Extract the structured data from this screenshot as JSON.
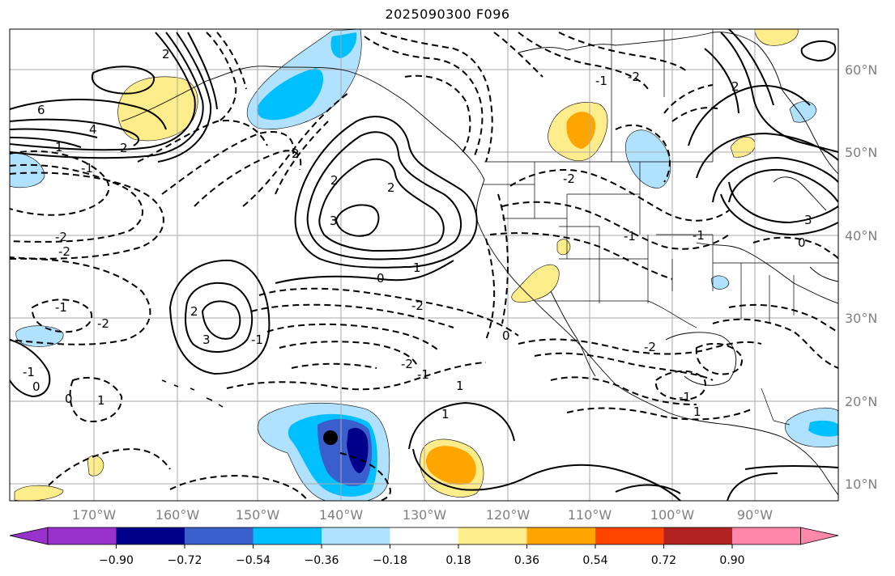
{
  "title": "2025090300 F096",
  "map": {
    "lon_labels": [
      "170°W",
      "160°W",
      "150°W",
      "140°W",
      "130°W",
      "120°W",
      "110°W",
      "100°W",
      "90°W"
    ],
    "lat_labels": [
      "60°N",
      "50°N",
      "40°N",
      "30°N",
      "20°N",
      "10°N"
    ]
  },
  "contour_labels": [
    "6",
    "4",
    "2",
    "1",
    "-1",
    "-2",
    "3",
    "2",
    "-2",
    "-1",
    "2",
    "3",
    "-1",
    "0",
    "1",
    "-2",
    "-2",
    "-1",
    "2",
    "2",
    "1",
    "-2",
    "0",
    "-1",
    "0",
    "1",
    "-2",
    "-1",
    "1",
    "0",
    "1",
    "-1",
    "2",
    "-2",
    "-1",
    "-2",
    "-1",
    "2",
    "0",
    "3"
  ],
  "colorbar": {
    "ticks": [
      "−0.90",
      "−0.72",
      "−0.54",
      "−0.36",
      "−0.18",
      "0.18",
      "0.36",
      "0.54",
      "0.72",
      "0.90"
    ],
    "colors": [
      "#9932cc",
      "#00008b",
      "#3a5fcd",
      "#00bfff",
      "#b0e2ff",
      "#ffffff",
      "#ffec8b",
      "#ffa500",
      "#ff4500",
      "#b22222",
      "#ff88aa"
    ]
  }
}
